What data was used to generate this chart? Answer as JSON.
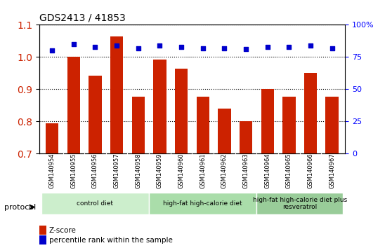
{
  "title": "GDS2413 / 41853",
  "samples": [
    "GSM140954",
    "GSM140955",
    "GSM140956",
    "GSM140957",
    "GSM140958",
    "GSM140959",
    "GSM140960",
    "GSM140961",
    "GSM140962",
    "GSM140963",
    "GSM140964",
    "GSM140965",
    "GSM140966",
    "GSM140967"
  ],
  "z_scores": [
    0.795,
    1.0,
    0.943,
    1.063,
    0.878,
    0.993,
    0.963,
    0.878,
    0.84,
    0.8,
    0.9,
    0.878,
    0.95,
    0.878
  ],
  "percentile_ranks": [
    80,
    85,
    83,
    84,
    82,
    84,
    83,
    82,
    82,
    81,
    83,
    83,
    84,
    82
  ],
  "bar_color": "#cc2200",
  "dot_color": "#0000cc",
  "ylim_left": [
    0.7,
    1.1
  ],
  "ylim_right": [
    0,
    100
  ],
  "yticks_left": [
    0.7,
    0.8,
    0.9,
    1.0,
    1.1
  ],
  "yticks_right": [
    0,
    25,
    50,
    75,
    100
  ],
  "ytick_labels_right": [
    "0",
    "25",
    "50",
    "75",
    "100%"
  ],
  "groups": [
    {
      "label": "control diet",
      "start": 0,
      "end": 4,
      "color": "#cceecc"
    },
    {
      "label": "high-fat high-calorie diet",
      "start": 5,
      "end": 9,
      "color": "#aaddaa"
    },
    {
      "label": "high-fat high-calorie diet plus\nresveratrol",
      "start": 10,
      "end": 13,
      "color": "#99cc99"
    }
  ],
  "protocol_label": "protocol",
  "legend_zscore": "Z-score",
  "legend_percentile": "percentile rank within the sample",
  "grid_color": "#555555",
  "bg_color": "#ffffff"
}
